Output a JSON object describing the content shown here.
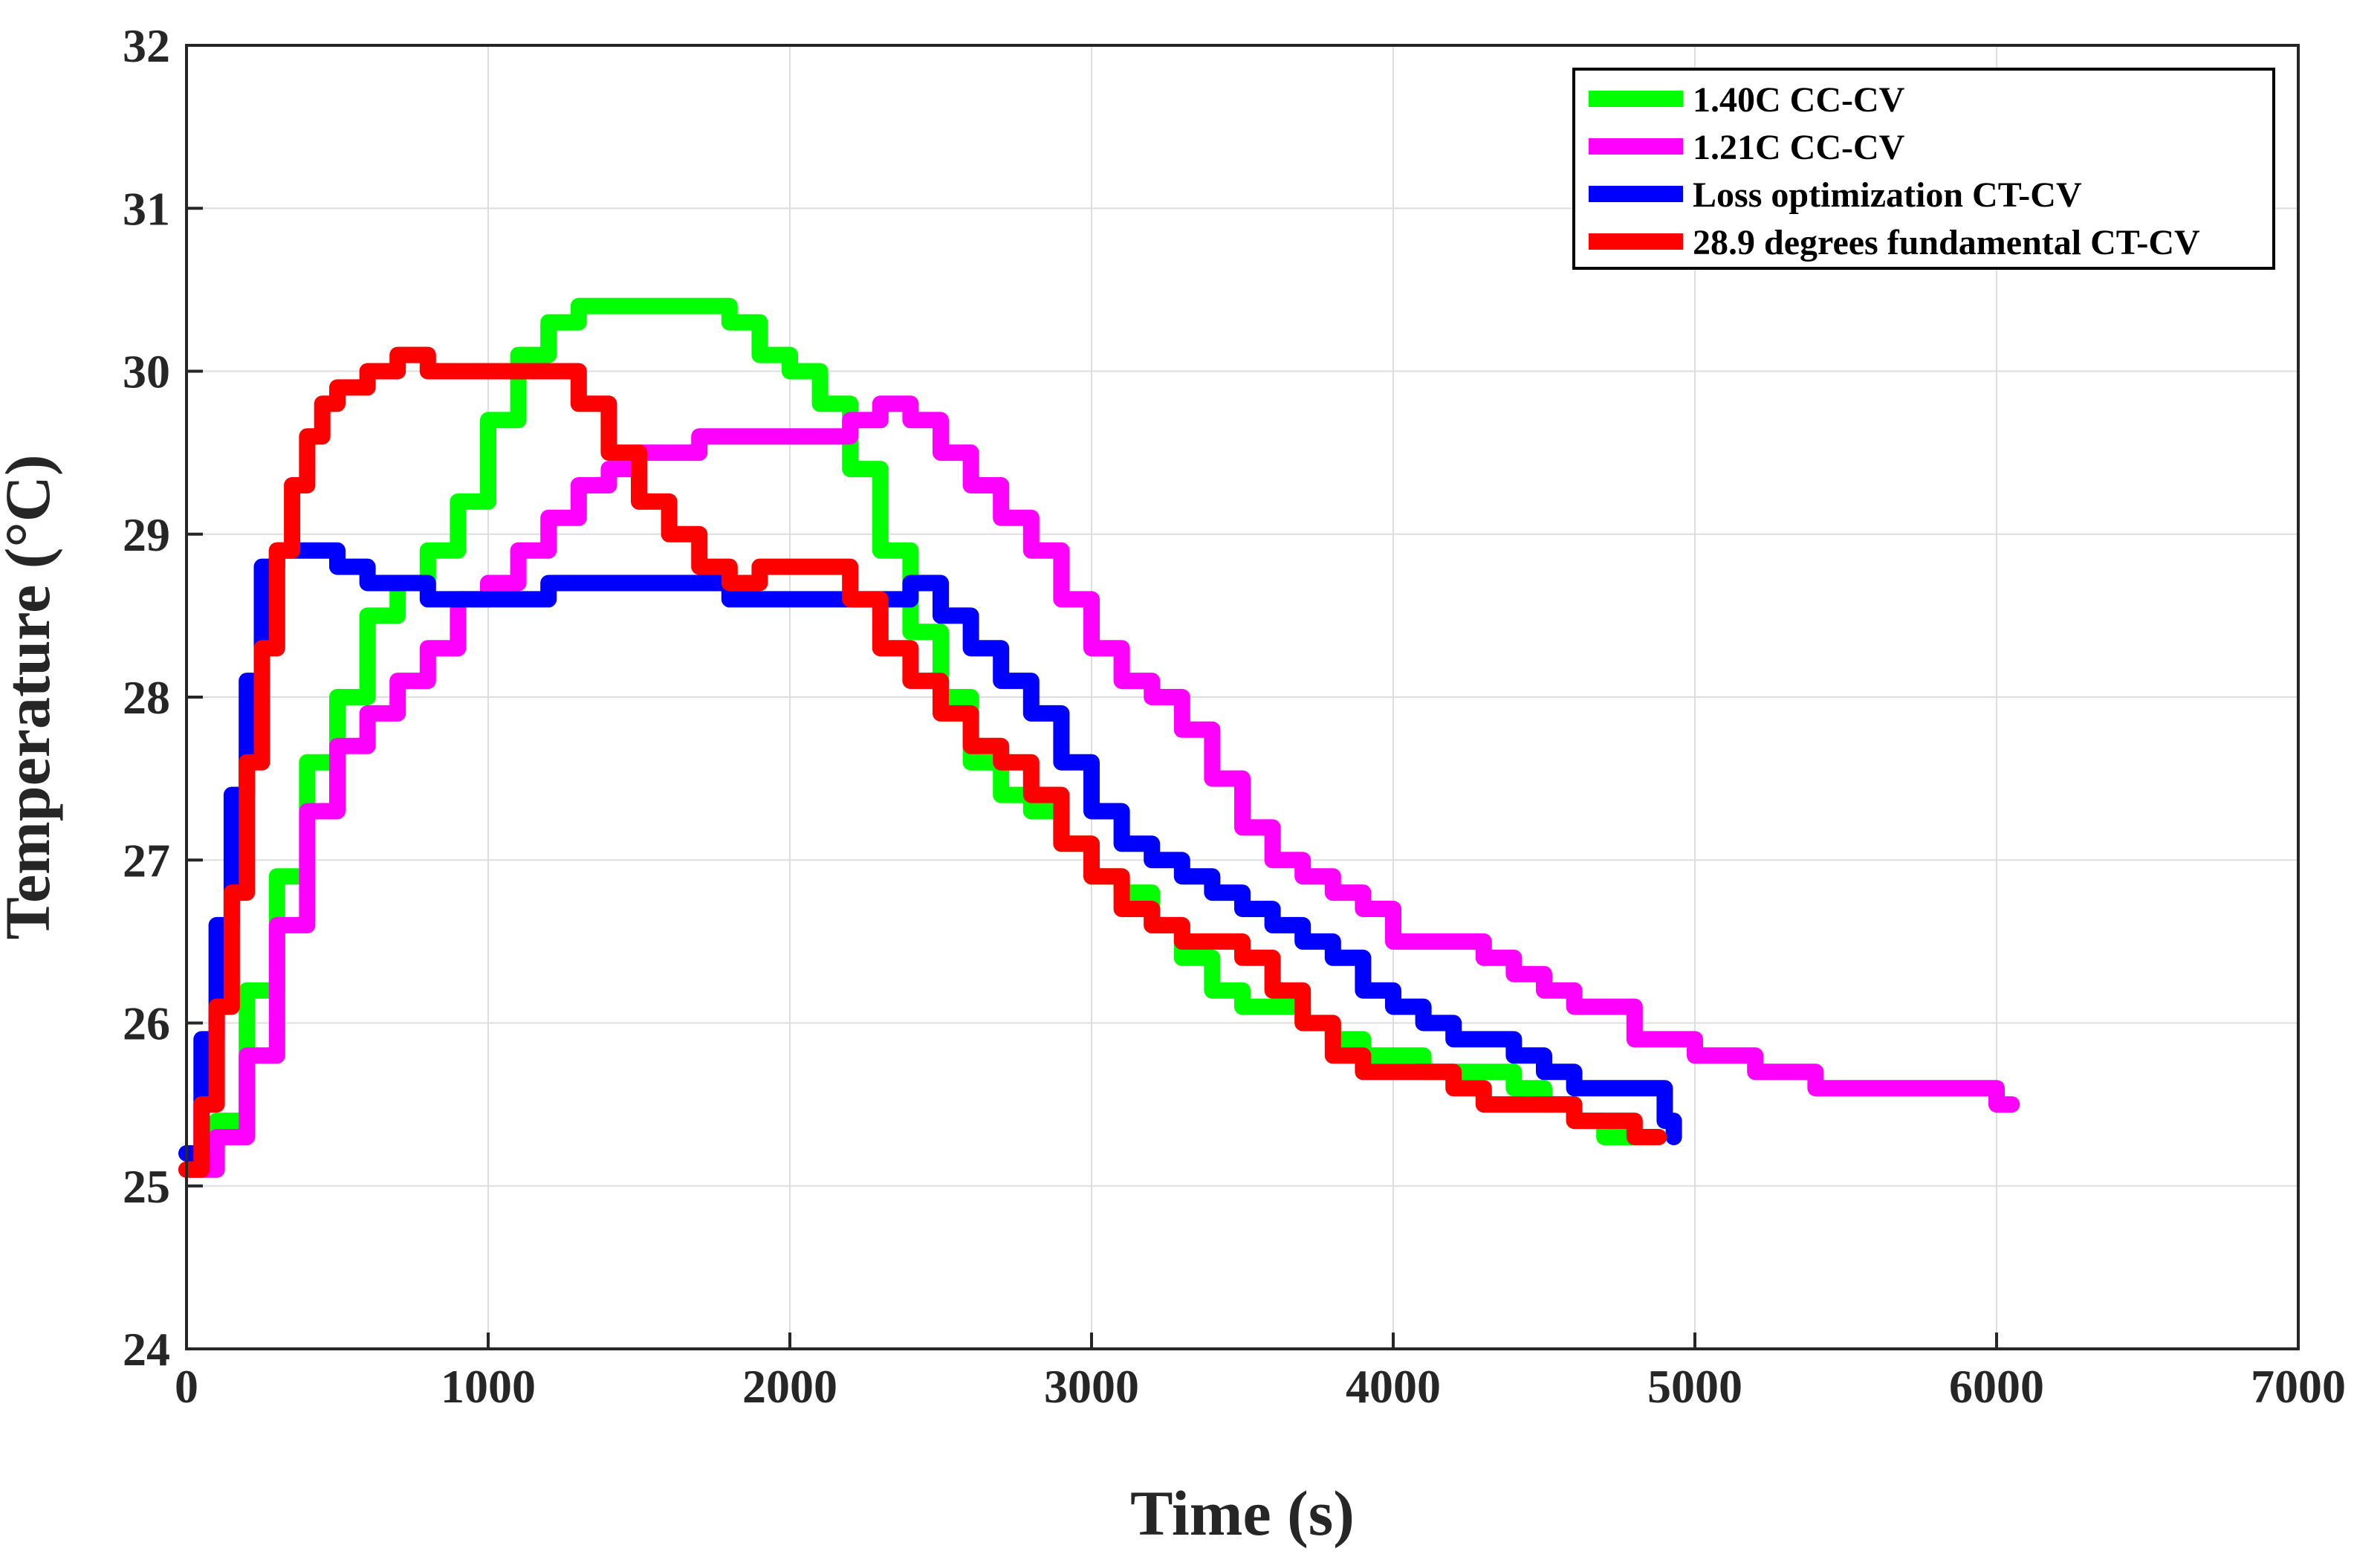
{
  "chart_data": {
    "type": "line",
    "title": "",
    "xlabel": "Time (s)",
    "ylabel": "Temperature (°C)",
    "xlim": [
      0,
      7000
    ],
    "ylim": [
      24,
      32
    ],
    "xticks": [
      0,
      1000,
      2000,
      3000,
      4000,
      5000,
      6000,
      7000
    ],
    "yticks": [
      24,
      25,
      26,
      27,
      28,
      29,
      30,
      31,
      32
    ],
    "grid": true,
    "legend_position": "top-right",
    "series": [
      {
        "name": "1.40C CC-CV",
        "color": "#00ff00",
        "x": [
          0,
          100,
          200,
          300,
          400,
          500,
          600,
          700,
          800,
          900,
          1000,
          1100,
          1200,
          1300,
          1500,
          1800,
          1900,
          2000,
          2100,
          2200,
          2300,
          2400,
          2500,
          2600,
          2700,
          2800,
          2900,
          3000,
          3100,
          3200,
          3300,
          3400,
          3500,
          3600,
          3700,
          3800,
          3900,
          4000,
          4100,
          4200,
          4300,
          4400,
          4500,
          4600,
          4700,
          4800,
          4880
        ],
        "y": [
          25.1,
          25.4,
          26.2,
          26.9,
          27.6,
          28.0,
          28.5,
          28.7,
          28.9,
          29.2,
          29.7,
          30.1,
          30.3,
          30.4,
          30.4,
          30.3,
          30.1,
          30.0,
          29.8,
          29.4,
          28.9,
          28.4,
          28.0,
          27.6,
          27.4,
          27.3,
          27.1,
          26.9,
          26.8,
          26.6,
          26.4,
          26.2,
          26.1,
          26.1,
          26.0,
          25.9,
          25.8,
          25.8,
          25.7,
          25.7,
          25.7,
          25.6,
          25.5,
          25.4,
          25.3,
          25.3,
          25.3
        ]
      },
      {
        "name": "1.21C CC-CV",
        "color": "#ff00ff",
        "x": [
          0,
          100,
          200,
          300,
          400,
          500,
          600,
          700,
          800,
          900,
          1000,
          1100,
          1200,
          1300,
          1400,
          1500,
          1700,
          1800,
          2000,
          2100,
          2200,
          2300,
          2400,
          2500,
          2600,
          2700,
          2800,
          2900,
          3000,
          3100,
          3200,
          3300,
          3400,
          3500,
          3600,
          3700,
          3800,
          3900,
          4000,
          4100,
          4200,
          4300,
          4400,
          4500,
          4600,
          4800,
          5000,
          5200,
          5400,
          5600,
          5800,
          6000,
          6050
        ],
        "y": [
          25.1,
          25.3,
          25.8,
          26.6,
          27.3,
          27.7,
          27.9,
          28.1,
          28.3,
          28.6,
          28.7,
          28.9,
          29.1,
          29.3,
          29.4,
          29.5,
          29.6,
          29.6,
          29.6,
          29.6,
          29.7,
          29.8,
          29.7,
          29.5,
          29.3,
          29.1,
          28.9,
          28.6,
          28.3,
          28.1,
          28.0,
          27.8,
          27.5,
          27.2,
          27.0,
          26.9,
          26.8,
          26.7,
          26.5,
          26.5,
          26.5,
          26.4,
          26.3,
          26.2,
          26.1,
          25.9,
          25.8,
          25.7,
          25.6,
          25.6,
          25.6,
          25.5,
          25.5
        ]
      },
      {
        "name": "Loss optimization CT-CV",
        "color": "#0000ff",
        "x": [
          0,
          50,
          100,
          150,
          200,
          250,
          300,
          400,
          500,
          600,
          700,
          800,
          1000,
          1200,
          1400,
          1600,
          1800,
          2000,
          2200,
          2400,
          2500,
          2600,
          2700,
          2800,
          2900,
          3000,
          3100,
          3200,
          3300,
          3400,
          3500,
          3600,
          3700,
          3800,
          3900,
          4000,
          4100,
          4200,
          4300,
          4400,
          4500,
          4600,
          4700,
          4800,
          4900,
          4930
        ],
        "y": [
          25.2,
          25.9,
          26.6,
          27.4,
          28.1,
          28.8,
          28.9,
          28.9,
          28.8,
          28.7,
          28.7,
          28.6,
          28.6,
          28.7,
          28.7,
          28.7,
          28.6,
          28.6,
          28.6,
          28.7,
          28.5,
          28.3,
          28.1,
          27.9,
          27.6,
          27.3,
          27.1,
          27.0,
          26.9,
          26.8,
          26.7,
          26.6,
          26.5,
          26.4,
          26.2,
          26.1,
          26.0,
          25.9,
          25.9,
          25.8,
          25.7,
          25.6,
          25.6,
          25.6,
          25.4,
          25.3
        ]
      },
      {
        "name": "28.9 degrees fundamental CT-CV",
        "color": "#ff0000",
        "x": [
          0,
          50,
          100,
          150,
          200,
          250,
          300,
          350,
          400,
          450,
          500,
          600,
          700,
          800,
          900,
          1000,
          1100,
          1200,
          1300,
          1400,
          1500,
          1600,
          1700,
          1800,
          1900,
          2000,
          2100,
          2200,
          2300,
          2400,
          2500,
          2600,
          2700,
          2800,
          2900,
          3000,
          3100,
          3200,
          3300,
          3400,
          3500,
          3600,
          3700,
          3800,
          3900,
          4000,
          4100,
          4200,
          4300,
          4400,
          4500,
          4600,
          4700,
          4800,
          4880
        ],
        "y": [
          25.1,
          25.5,
          26.1,
          26.8,
          27.6,
          28.3,
          28.9,
          29.3,
          29.6,
          29.8,
          29.9,
          30.0,
          30.1,
          30.0,
          30.0,
          30.0,
          30.0,
          30.0,
          29.8,
          29.5,
          29.2,
          29.0,
          28.8,
          28.7,
          28.8,
          28.8,
          28.8,
          28.6,
          28.3,
          28.1,
          27.9,
          27.7,
          27.6,
          27.4,
          27.1,
          26.9,
          26.7,
          26.6,
          26.5,
          26.5,
          26.4,
          26.2,
          26.0,
          25.8,
          25.7,
          25.7,
          25.7,
          25.6,
          25.5,
          25.5,
          25.5,
          25.4,
          25.4,
          25.3,
          25.3
        ]
      }
    ]
  }
}
